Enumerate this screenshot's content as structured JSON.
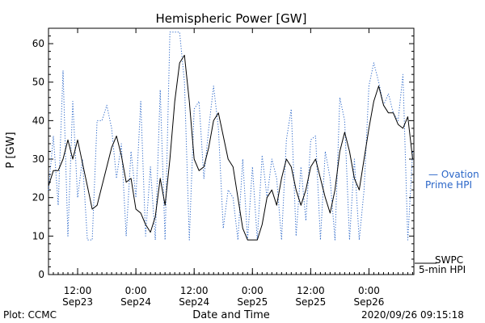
{
  "chart_data": {
    "type": "line",
    "title": "Hemispheric Power [GW]",
    "xlabel": "Date and Time",
    "ylabel": "P [GW]",
    "ylim": [
      0,
      64
    ],
    "y_ticks": [
      0,
      10,
      20,
      30,
      40,
      50,
      60
    ],
    "xlim": [
      "2020-09-23T06:00",
      "2020-09-26T09:15"
    ],
    "x_ticks": [
      {
        "time": "2020-09-23T12:00",
        "line1": "12:00",
        "line2": "Sep23"
      },
      {
        "time": "2020-09-24T00:00",
        "line1": "0:00",
        "line2": "Sep24"
      },
      {
        "time": "2020-09-24T12:00",
        "line1": "12:00",
        "line2": "Sep24"
      },
      {
        "time": "2020-09-25T00:00",
        "line1": "0:00",
        "line2": "Sep25"
      },
      {
        "time": "2020-09-25T12:00",
        "line1": "12:00",
        "line2": "Sep25"
      },
      {
        "time": "2020-09-26T00:00",
        "line1": "0:00",
        "line2": "Sep26"
      }
    ],
    "grid": false,
    "legend_position": "right",
    "series": [
      {
        "name": "SWPC 5-min HPI",
        "color": "#000000",
        "style": "solid",
        "x": [
          "2020-09-23T06:00",
          "2020-09-23T07:00",
          "2020-09-23T08:00",
          "2020-09-23T09:00",
          "2020-09-23T10:00",
          "2020-09-23T11:00",
          "2020-09-23T12:00",
          "2020-09-23T13:00",
          "2020-09-23T14:00",
          "2020-09-23T15:00",
          "2020-09-23T16:00",
          "2020-09-23T17:00",
          "2020-09-23T18:00",
          "2020-09-23T19:00",
          "2020-09-23T20:00",
          "2020-09-23T21:00",
          "2020-09-23T22:00",
          "2020-09-23T23:00",
          "2020-09-24T00:00",
          "2020-09-24T01:00",
          "2020-09-24T02:00",
          "2020-09-24T03:00",
          "2020-09-24T04:00",
          "2020-09-24T05:00",
          "2020-09-24T06:00",
          "2020-09-24T07:00",
          "2020-09-24T08:00",
          "2020-09-24T09:00",
          "2020-09-24T10:00",
          "2020-09-24T11:00",
          "2020-09-24T12:00",
          "2020-09-24T13:00",
          "2020-09-24T14:00",
          "2020-09-24T15:00",
          "2020-09-24T16:00",
          "2020-09-24T17:00",
          "2020-09-24T18:00",
          "2020-09-24T19:00",
          "2020-09-24T20:00",
          "2020-09-24T21:00",
          "2020-09-24T22:00",
          "2020-09-24T23:00",
          "2020-09-25T00:00",
          "2020-09-25T01:00",
          "2020-09-25T02:00",
          "2020-09-25T03:00",
          "2020-09-25T04:00",
          "2020-09-25T05:00",
          "2020-09-25T06:00",
          "2020-09-25T07:00",
          "2020-09-25T08:00",
          "2020-09-25T09:00",
          "2020-09-25T10:00",
          "2020-09-25T11:00",
          "2020-09-25T12:00",
          "2020-09-25T13:00",
          "2020-09-25T14:00",
          "2020-09-25T15:00",
          "2020-09-25T16:00",
          "2020-09-25T17:00",
          "2020-09-25T18:00",
          "2020-09-25T19:00",
          "2020-09-25T20:00",
          "2020-09-25T21:00",
          "2020-09-25T22:00",
          "2020-09-25T23:00",
          "2020-09-26T00:00",
          "2020-09-26T01:00",
          "2020-09-26T02:00",
          "2020-09-26T03:00",
          "2020-09-26T04:00",
          "2020-09-26T05:00",
          "2020-09-26T06:00",
          "2020-09-26T07:00",
          "2020-09-26T08:00",
          "2020-09-26T09:00"
        ],
        "y": [
          23,
          27,
          27,
          30,
          35,
          30,
          35,
          29,
          23,
          17,
          18,
          23,
          28,
          33,
          36,
          31,
          24,
          25,
          17,
          16,
          13,
          11,
          15,
          25,
          18,
          30,
          45,
          55,
          57,
          45,
          30,
          27,
          28,
          33,
          40,
          42,
          36,
          30,
          28,
          20,
          12,
          9,
          9,
          9,
          13,
          20,
          22,
          18,
          25,
          30,
          28,
          22,
          18,
          22,
          28,
          30,
          25,
          20,
          16,
          22,
          32,
          37,
          32,
          25,
          22,
          30,
          38,
          45,
          49,
          44,
          42,
          42,
          39,
          38,
          41,
          30
        ]
      },
      {
        "name": "Ovation Prime HPI",
        "color": "#2a66c8",
        "style": "dotted",
        "x": [
          "2020-09-23T06:00",
          "2020-09-23T07:00",
          "2020-09-23T08:00",
          "2020-09-23T09:00",
          "2020-09-23T10:00",
          "2020-09-23T11:00",
          "2020-09-23T12:00",
          "2020-09-23T13:00",
          "2020-09-23T14:00",
          "2020-09-23T15:00",
          "2020-09-23T16:00",
          "2020-09-23T17:00",
          "2020-09-23T18:00",
          "2020-09-23T19:00",
          "2020-09-23T20:00",
          "2020-09-23T21:00",
          "2020-09-23T22:00",
          "2020-09-23T23:00",
          "2020-09-24T00:00",
          "2020-09-24T01:00",
          "2020-09-24T02:00",
          "2020-09-24T03:00",
          "2020-09-24T04:00",
          "2020-09-24T05:00",
          "2020-09-24T06:00",
          "2020-09-24T07:00",
          "2020-09-24T08:00",
          "2020-09-24T09:00",
          "2020-09-24T10:00",
          "2020-09-24T11:00",
          "2020-09-24T12:00",
          "2020-09-24T13:00",
          "2020-09-24T14:00",
          "2020-09-24T15:00",
          "2020-09-24T16:00",
          "2020-09-24T17:00",
          "2020-09-24T18:00",
          "2020-09-24T19:00",
          "2020-09-24T20:00",
          "2020-09-24T21:00",
          "2020-09-24T22:00",
          "2020-09-24T23:00",
          "2020-09-25T00:00",
          "2020-09-25T01:00",
          "2020-09-25T02:00",
          "2020-09-25T03:00",
          "2020-09-25T04:00",
          "2020-09-25T05:00",
          "2020-09-25T06:00",
          "2020-09-25T07:00",
          "2020-09-25T08:00",
          "2020-09-25T09:00",
          "2020-09-25T10:00",
          "2020-09-25T11:00",
          "2020-09-25T12:00",
          "2020-09-25T13:00",
          "2020-09-25T14:00",
          "2020-09-25T15:00",
          "2020-09-25T16:00",
          "2020-09-25T17:00",
          "2020-09-25T18:00",
          "2020-09-25T19:00",
          "2020-09-25T20:00",
          "2020-09-25T21:00",
          "2020-09-25T22:00",
          "2020-09-25T23:00",
          "2020-09-26T00:00",
          "2020-09-26T01:00",
          "2020-09-26T02:00",
          "2020-09-26T03:00",
          "2020-09-26T04:00",
          "2020-09-26T05:00",
          "2020-09-26T06:00",
          "2020-09-26T07:00",
          "2020-09-26T08:00",
          "2020-09-26T09:00"
        ],
        "y": [
          22,
          36,
          18,
          53,
          10,
          45,
          20,
          30,
          9,
          9,
          40,
          40,
          44,
          38,
          25,
          34,
          10,
          32,
          20,
          45,
          10,
          28,
          9,
          48,
          9,
          63,
          63,
          63,
          50,
          9,
          43,
          45,
          25,
          38,
          49,
          38,
          12,
          22,
          20,
          9,
          30,
          9,
          28,
          9,
          31,
          20,
          30,
          25,
          9,
          35,
          43,
          10,
          28,
          14,
          35,
          36,
          9,
          32,
          25,
          9,
          46,
          40,
          9,
          30,
          9,
          22,
          49,
          55,
          50,
          44,
          47,
          42,
          40,
          52,
          9,
          32
        ]
      }
    ],
    "legend": [
      {
        "line1": "— Ovation",
        "line2": "Prime HPI",
        "color": "#2a66c8"
      },
      {
        "line1": "SWPC",
        "line2": "5-min HPI",
        "color": "#000000"
      }
    ]
  },
  "footer": {
    "plot_credit": "Plot: CCMC",
    "timestamp": "2020/09/26 09:15:18"
  }
}
